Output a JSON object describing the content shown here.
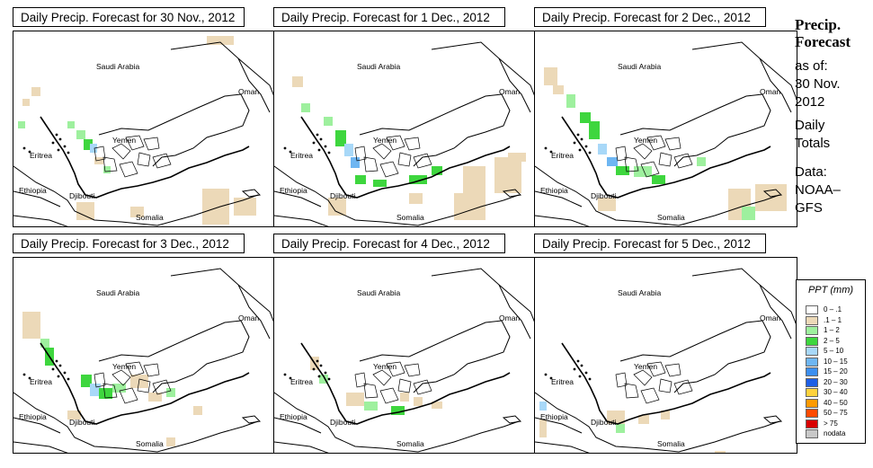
{
  "panels": [
    {
      "title": "Daily Precip. Forecast for  30 Nov., 2012"
    },
    {
      "title": "Daily Precip. Forecast for  1 Dec., 2012"
    },
    {
      "title": "Daily Precip. Forecast for  2 Dec., 2012"
    },
    {
      "title": "Daily Precip. Forecast for  3 Dec., 2012"
    },
    {
      "title": "Daily Precip. Forecast for  4 Dec., 2012"
    },
    {
      "title": "Daily Precip. Forecast for  5 Dec., 2012"
    }
  ],
  "map_labels": {
    "saudi": "Saudi Arabia",
    "oman": "Oman",
    "yemen": "Yemen",
    "eritrea": "Eritrea",
    "ethiopia": "Ethiopia",
    "djibouti": "Djibouti",
    "somalia": "Somalia"
  },
  "side": {
    "title": "Precip.\nForecast",
    "asof": "as of:\n30 Nov.\n2012",
    "totals": "Daily\nTotals",
    "source": "Data:\nNOAA–\nGFS"
  },
  "legend": {
    "title": "PPT (mm)",
    "classes": [
      {
        "label": "0 – .1",
        "color": "#ffffff"
      },
      {
        "label": ".1 – 1",
        "color": "#ecd9b8"
      },
      {
        "label": "1 – 2",
        "color": "#9ef09e"
      },
      {
        "label": "2 – 5",
        "color": "#3ed63e"
      },
      {
        "label": "5 – 10",
        "color": "#a8d8f8"
      },
      {
        "label": "10 – 15",
        "color": "#6eb6f2"
      },
      {
        "label": "15 – 20",
        "color": "#3c8ff0"
      },
      {
        "label": "20 – 30",
        "color": "#1e5fe6"
      },
      {
        "label": "30 – 40",
        "color": "#ffd23c"
      },
      {
        "label": "40 – 50",
        "color": "#ff9a00"
      },
      {
        "label": "50 – 75",
        "color": "#ff4a00"
      },
      {
        "label": "> 75",
        "color": "#d80000"
      },
      {
        "label": "nodata",
        "color": "#c8c8c8"
      }
    ]
  }
}
